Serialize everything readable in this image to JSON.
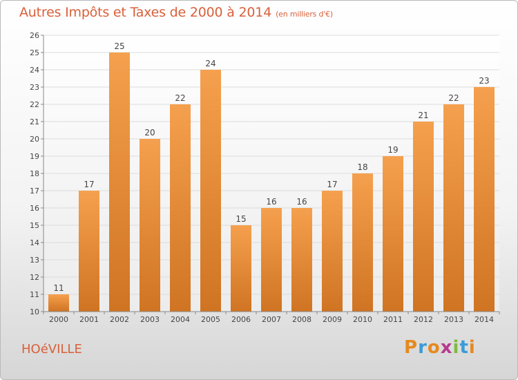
{
  "header": {
    "title": "Autres Impôts et Taxes de 2000 à 2014",
    "unit_note": "(en milliers d'€)"
  },
  "footer": {
    "city": "HOéVILLE",
    "brand_letters": [
      "P",
      "r",
      "o",
      "x",
      "i",
      "t",
      "i"
    ],
    "brand_colors": [
      "#e58a1f",
      "#3b9bd8",
      "#e58a1f",
      "#b53a8f",
      "#7dbb3f",
      "#3b9bd8",
      "#e58a1f"
    ]
  },
  "chart_data": {
    "type": "bar",
    "categories": [
      "2000",
      "2001",
      "2002",
      "2003",
      "2004",
      "2005",
      "2006",
      "2007",
      "2008",
      "2009",
      "2010",
      "2011",
      "2012",
      "2013",
      "2014"
    ],
    "values": [
      11,
      17,
      25,
      20,
      22,
      24,
      15,
      16,
      16,
      17,
      18,
      19,
      21,
      22,
      23
    ],
    "ylim": [
      10,
      26
    ],
    "yticks": [
      10,
      11,
      12,
      13,
      14,
      15,
      16,
      17,
      18,
      19,
      20,
      21,
      22,
      23,
      24,
      25,
      26
    ],
    "grid": true,
    "bar_color_top": "#f5a04e",
    "bar_color_bottom": "#cf7422"
  }
}
